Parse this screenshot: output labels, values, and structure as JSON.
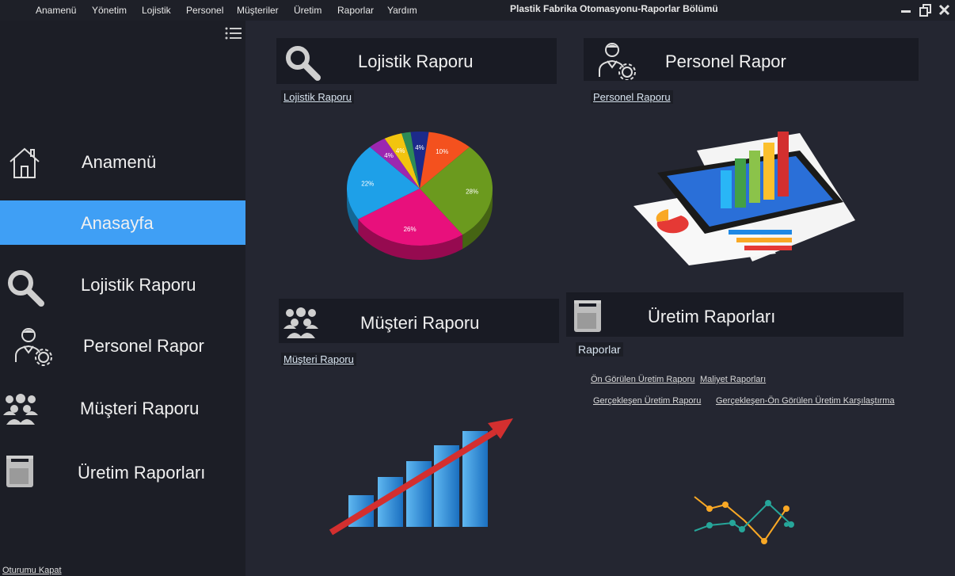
{
  "menu": {
    "items": [
      "Anamenü",
      "Yönetim",
      "Lojistik",
      "Personel",
      "Müşteriler",
      "Üretim",
      "Raporlar",
      "Yardım"
    ]
  },
  "window": {
    "title": "Plastik Fabrika Otomasyonu-Raporlar Bölümü"
  },
  "sidebar": {
    "items": [
      {
        "label": "Anamenü",
        "icon": "home-icon"
      },
      {
        "label": "Anasayfa",
        "icon": ""
      },
      {
        "label": "Lojistik Raporu",
        "icon": "search-icon"
      },
      {
        "label": "Personel Rapor",
        "icon": "person-gear-icon"
      },
      {
        "label": "Müşteri Raporu",
        "icon": "group-icon"
      },
      {
        "label": "Üretim Raporları",
        "icon": "machine-icon"
      }
    ],
    "logout_label": "Oturumu Kapat",
    "active_color": "#3f9ff5"
  },
  "cards": {
    "lojistik": {
      "title": "Lojistik Raporu",
      "link": "Lojistik Raporu"
    },
    "personel": {
      "title": "Personel Rapor",
      "link": "Personel Raporu"
    },
    "musteri": {
      "title": "Müşteri Raporu",
      "link": "Müşteri Raporu"
    },
    "uretim": {
      "title": "Üretim Raporları",
      "label": "Raporlar",
      "links": [
        "Ön Görülen Üretim Raporu",
        "Maliyet Raporları",
        "Gerçekleşen Üretim Raporu",
        "Gerçekleşen-Ön Görülen Üretim Karşılaştırma"
      ]
    }
  },
  "pie": {
    "slices": [
      {
        "label": "4%",
        "value": 4,
        "color": "#1c2a8a"
      },
      {
        "label": "10%",
        "value": 10,
        "color": "#f4511e"
      },
      {
        "label": "28%",
        "value": 28,
        "color": "#6b9a1e"
      },
      {
        "label": "26%",
        "value": 26,
        "color": "#e8107c"
      },
      {
        "label": "22%",
        "value": 22,
        "color": "#1ea0e8"
      },
      {
        "label": "4%",
        "value": 4,
        "color": "#9c27b0"
      },
      {
        "label": "4%",
        "value": 4,
        "color": "#f2c40f"
      },
      {
        "label": "",
        "value": 2,
        "color": "#2e8b57"
      }
    ]
  }
}
